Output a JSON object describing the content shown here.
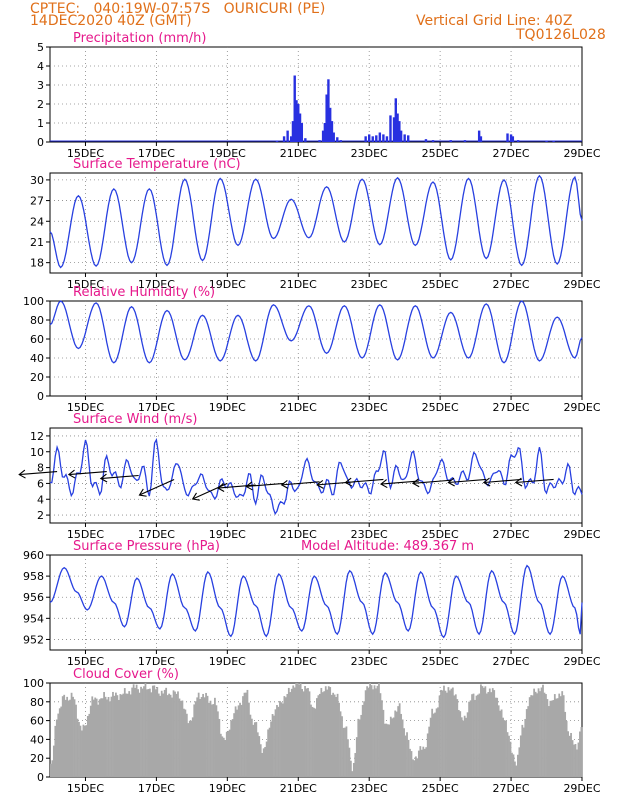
{
  "header": {
    "line1_left": "CPTEC:   040:19W-07:57S   OURICURI (PE)",
    "line2_left": "14DEC2020 40Z (GMT)",
    "line1_right": "Vertical Grid Line: 40Z",
    "line2_right": "TQ0126L028",
    "model_altitude": "Model Altitude: 489.367 m"
  },
  "colors": {
    "header_text": "#e0701a",
    "panel_title": "#e6198c",
    "line": "#2840e0",
    "bar": "#2830e0",
    "cloud": "#a8a8a8",
    "wind_arrow": "#000000",
    "grid": "#888888"
  },
  "x_axis": {
    "tick_labels": [
      "15DEC",
      "17DEC",
      "19DEC",
      "21DEC",
      "23DEC",
      "25DEC",
      "27DEC",
      "29DEC"
    ]
  },
  "chart_data": [
    {
      "type": "bar",
      "title": "Precipitation (mm/h)",
      "ylim": [
        0,
        5
      ],
      "y_ticks": [
        "0",
        "1",
        "2",
        "3",
        "4",
        "5"
      ],
      "x_range_days": [
        14,
        29
      ],
      "points": [
        [
          20.4,
          0.05
        ],
        [
          20.6,
          0.3
        ],
        [
          20.7,
          0.6
        ],
        [
          20.8,
          0.3
        ],
        [
          20.85,
          1.1
        ],
        [
          20.9,
          3.5
        ],
        [
          20.95,
          2.2
        ],
        [
          21.0,
          2.0
        ],
        [
          21.05,
          1.5
        ],
        [
          21.1,
          1.0
        ],
        [
          21.2,
          0.2
        ],
        [
          21.6,
          0.1
        ],
        [
          21.7,
          0.6
        ],
        [
          21.75,
          1.0
        ],
        [
          21.8,
          2.5
        ],
        [
          21.85,
          3.3
        ],
        [
          21.9,
          1.8
        ],
        [
          21.95,
          1.1
        ],
        [
          22.0,
          0.5
        ],
        [
          22.1,
          0.25
        ],
        [
          22.2,
          0.1
        ],
        [
          22.9,
          0.3
        ],
        [
          23.0,
          0.4
        ],
        [
          23.1,
          0.3
        ],
        [
          23.2,
          0.35
        ],
        [
          23.3,
          0.5
        ],
        [
          23.4,
          0.4
        ],
        [
          23.5,
          0.3
        ],
        [
          23.6,
          1.4
        ],
        [
          23.7,
          1.3
        ],
        [
          23.75,
          2.3
        ],
        [
          23.8,
          1.5
        ],
        [
          23.85,
          1.1
        ],
        [
          23.9,
          0.6
        ],
        [
          24.0,
          0.4
        ],
        [
          24.1,
          0.35
        ],
        [
          24.6,
          0.15
        ],
        [
          24.8,
          0.1
        ],
        [
          25.3,
          0.1
        ],
        [
          25.7,
          0.1
        ],
        [
          26.1,
          0.6
        ],
        [
          26.15,
          0.3
        ],
        [
          26.9,
          0.45
        ],
        [
          27.0,
          0.4
        ],
        [
          27.05,
          0.3
        ],
        [
          27.2,
          0.1
        ],
        [
          28.0,
          0.05
        ],
        [
          28.2,
          0.05
        ]
      ]
    },
    {
      "type": "line",
      "title": "Surface Temperature (nC)",
      "ylim": [
        16.5,
        31
      ],
      "y_ticks": [
        "18",
        "21",
        "24",
        "27",
        "30"
      ],
      "x_range_days": [
        14,
        29
      ],
      "minima": [
        [
          14.3,
          17.3
        ],
        [
          15.3,
          17.5
        ],
        [
          16.3,
          18.0
        ],
        [
          17.3,
          17.6
        ],
        [
          18.3,
          18.3
        ],
        [
          19.3,
          20.5
        ],
        [
          20.3,
          21.5
        ],
        [
          21.3,
          21.6
        ],
        [
          22.3,
          21.0
        ],
        [
          23.3,
          20.6
        ],
        [
          24.3,
          20.5
        ],
        [
          25.3,
          18.4
        ],
        [
          26.3,
          18.6
        ],
        [
          27.3,
          17.6
        ],
        [
          28.3,
          17.8
        ]
      ],
      "maxima": [
        [
          14.8,
          27.7
        ],
        [
          15.8,
          28.7
        ],
        [
          16.8,
          28.7
        ],
        [
          17.8,
          30.1
        ],
        [
          18.8,
          30.2
        ],
        [
          19.8,
          30.1
        ],
        [
          20.8,
          27.2
        ],
        [
          21.8,
          29.0
        ],
        [
          22.8,
          30.1
        ],
        [
          23.8,
          30.3
        ],
        [
          24.8,
          29.7
        ],
        [
          25.8,
          30.2
        ],
        [
          26.8,
          30.0
        ],
        [
          27.8,
          30.6
        ],
        [
          28.8,
          30.4
        ]
      ]
    },
    {
      "type": "line",
      "title": "Relative Humidity (%)",
      "ylim": [
        0,
        100
      ],
      "y_ticks": [
        "0",
        "20",
        "40",
        "60",
        "80",
        "100"
      ],
      "x_range_days": [
        14,
        29
      ],
      "minima": [
        [
          14.8,
          50
        ],
        [
          15.8,
          35
        ],
        [
          16.8,
          35
        ],
        [
          17.8,
          38
        ],
        [
          18.8,
          37
        ],
        [
          19.8,
          37
        ],
        [
          20.8,
          58
        ],
        [
          21.8,
          45
        ],
        [
          22.8,
          40
        ],
        [
          23.8,
          38
        ],
        [
          24.8,
          40
        ],
        [
          25.8,
          40
        ],
        [
          26.8,
          35
        ],
        [
          27.8,
          37
        ],
        [
          28.8,
          40
        ]
      ],
      "maxima": [
        [
          14.3,
          100
        ],
        [
          15.3,
          98
        ],
        [
          16.3,
          94
        ],
        [
          17.3,
          90
        ],
        [
          18.3,
          85
        ],
        [
          19.3,
          85
        ],
        [
          20.3,
          96
        ],
        [
          21.3,
          95
        ],
        [
          22.3,
          95
        ],
        [
          23.3,
          96
        ],
        [
          24.3,
          95
        ],
        [
          25.3,
          88
        ],
        [
          26.3,
          97
        ],
        [
          27.3,
          100
        ],
        [
          28.3,
          83
        ]
      ]
    },
    {
      "type": "line",
      "title": "Surface Wind (m/s)",
      "ylim": [
        1,
        13
      ],
      "y_ticks": [
        "2",
        "4",
        "6",
        "8",
        "10",
        "12"
      ],
      "x_range_days": [
        14,
        29
      ],
      "series_knots": [
        [
          14.0,
          6
        ],
        [
          14.2,
          10
        ],
        [
          14.4,
          7
        ],
        [
          14.6,
          5
        ],
        [
          14.8,
          7
        ],
        [
          15.0,
          11
        ],
        [
          15.2,
          6
        ],
        [
          15.4,
          5
        ],
        [
          15.6,
          9
        ],
        [
          15.8,
          7
        ],
        [
          16.0,
          6
        ],
        [
          16.2,
          9
        ],
        [
          16.4,
          6
        ],
        [
          16.6,
          8
        ],
        [
          16.8,
          5
        ],
        [
          17.0,
          11.5
        ],
        [
          17.2,
          5
        ],
        [
          17.4,
          6
        ],
        [
          17.6,
          9
        ],
        [
          17.8,
          5
        ],
        [
          18.0,
          5
        ],
        [
          18.2,
          7
        ],
        [
          18.4,
          6
        ],
        [
          18.6,
          4
        ],
        [
          18.8,
          6
        ],
        [
          19.0,
          6
        ],
        [
          19.2,
          5
        ],
        [
          19.4,
          4
        ],
        [
          19.6,
          7
        ],
        [
          19.8,
          4
        ],
        [
          20.0,
          7
        ],
        [
          20.2,
          4
        ],
        [
          20.4,
          2.5
        ],
        [
          20.6,
          4
        ],
        [
          20.8,
          6
        ],
        [
          21.0,
          5
        ],
        [
          21.2,
          9
        ],
        [
          21.4,
          7
        ],
        [
          21.6,
          5
        ],
        [
          21.8,
          6
        ],
        [
          22.0,
          5
        ],
        [
          22.2,
          9
        ],
        [
          22.4,
          6
        ],
        [
          22.6,
          6
        ],
        [
          22.8,
          6
        ],
        [
          23.0,
          5
        ],
        [
          23.2,
          7
        ],
        [
          23.4,
          10
        ],
        [
          23.6,
          6
        ],
        [
          23.8,
          8
        ],
        [
          24.0,
          6
        ],
        [
          24.2,
          10
        ],
        [
          24.4,
          7
        ],
        [
          24.6,
          5
        ],
        [
          24.8,
          6
        ],
        [
          25.0,
          9
        ],
        [
          25.2,
          7
        ],
        [
          25.4,
          6
        ],
        [
          25.6,
          7
        ],
        [
          25.8,
          7
        ],
        [
          26.0,
          10
        ],
        [
          26.2,
          7
        ],
        [
          26.4,
          6
        ],
        [
          26.6,
          8
        ],
        [
          26.8,
          6
        ],
        [
          27.0,
          9
        ],
        [
          27.2,
          10.5
        ],
        [
          27.4,
          6
        ],
        [
          27.6,
          6
        ],
        [
          27.8,
          10
        ],
        [
          28.0,
          5
        ],
        [
          28.2,
          6
        ],
        [
          28.4,
          6
        ],
        [
          28.6,
          8
        ],
        [
          28.8,
          5
        ],
        [
          29.0,
          5
        ]
      ],
      "wind_arrows": [
        [
          14.2,
          7.5,
          "W"
        ],
        [
          15.6,
          7.5,
          "W"
        ],
        [
          16.5,
          7,
          "W"
        ],
        [
          17.5,
          6.5,
          "SW"
        ],
        [
          19.0,
          6,
          "SW"
        ],
        [
          19.8,
          5.8,
          "W"
        ],
        [
          20.6,
          6,
          "W"
        ],
        [
          21.6,
          6.2,
          "W"
        ],
        [
          22.6,
          6.2,
          "W"
        ],
        [
          23.4,
          6.5,
          "W"
        ],
        [
          24.4,
          6.3,
          "W"
        ],
        [
          25.3,
          6.4,
          "W"
        ],
        [
          26.3,
          6.5,
          "W"
        ],
        [
          27.3,
          6.5,
          "W"
        ],
        [
          28.2,
          6.5,
          "W"
        ]
      ]
    },
    {
      "type": "line",
      "title": "Surface Pressure (hPa)",
      "ylim": [
        951,
        960
      ],
      "y_ticks": [
        "952",
        "954",
        "956",
        "958",
        "960"
      ],
      "x_range_days": [
        14,
        29
      ],
      "series_knots": [
        [
          14.0,
          955.5
        ],
        [
          14.4,
          958.8
        ],
        [
          14.75,
          956.5
        ],
        [
          15.05,
          954.8
        ],
        [
          15.45,
          958.0
        ],
        [
          15.8,
          955.5
        ],
        [
          16.1,
          953.2
        ],
        [
          16.45,
          957.8
        ],
        [
          16.8,
          955.0
        ],
        [
          17.1,
          953.0
        ],
        [
          17.45,
          958.2
        ],
        [
          17.8,
          955.0
        ],
        [
          18.1,
          952.8
        ],
        [
          18.45,
          958.4
        ],
        [
          18.8,
          955.0
        ],
        [
          19.1,
          952.3
        ],
        [
          19.45,
          958.0
        ],
        [
          19.8,
          955.2
        ],
        [
          20.1,
          952.3
        ],
        [
          20.45,
          958.2
        ],
        [
          20.8,
          955.0
        ],
        [
          21.1,
          952.8
        ],
        [
          21.45,
          958.0
        ],
        [
          21.8,
          955.2
        ],
        [
          22.1,
          952.5
        ],
        [
          22.45,
          958.5
        ],
        [
          22.8,
          955.5
        ],
        [
          23.1,
          952.5
        ],
        [
          23.45,
          958.3
        ],
        [
          23.8,
          955.5
        ],
        [
          24.1,
          952.8
        ],
        [
          24.45,
          958.4
        ],
        [
          24.8,
          955.0
        ],
        [
          25.1,
          952.2
        ],
        [
          25.45,
          958.0
        ],
        [
          25.8,
          955.5
        ],
        [
          26.1,
          952.5
        ],
        [
          26.45,
          958.5
        ],
        [
          26.8,
          955.5
        ],
        [
          27.1,
          952.5
        ],
        [
          27.45,
          959.0
        ],
        [
          27.8,
          955.5
        ],
        [
          28.1,
          952.5
        ],
        [
          28.45,
          958.0
        ],
        [
          28.8,
          955.0
        ],
        [
          28.95,
          952.5
        ],
        [
          29.0,
          955.5
        ]
      ]
    },
    {
      "type": "bar",
      "title": "Cloud Cover (%)",
      "ylim": [
        0,
        100
      ],
      "y_ticks": [
        "0",
        "20",
        "40",
        "60",
        "80",
        "100"
      ],
      "x_range_days": [
        14,
        29
      ],
      "series_knots": [
        [
          14.0,
          10
        ],
        [
          14.2,
          70
        ],
        [
          14.4,
          85
        ],
        [
          14.6,
          85
        ],
        [
          14.9,
          50
        ],
        [
          15.2,
          82
        ],
        [
          15.6,
          85
        ],
        [
          16.0,
          88
        ],
        [
          16.4,
          95
        ],
        [
          16.8,
          95
        ],
        [
          17.2,
          90
        ],
        [
          17.6,
          88
        ],
        [
          17.9,
          60
        ],
        [
          18.2,
          88
        ],
        [
          18.6,
          80
        ],
        [
          18.9,
          40
        ],
        [
          19.2,
          70
        ],
        [
          19.5,
          90
        ],
        [
          19.7,
          60
        ],
        [
          20.0,
          30
        ],
        [
          20.3,
          70
        ],
        [
          20.6,
          85
        ],
        [
          20.9,
          100
        ],
        [
          21.2,
          95
        ],
        [
          21.4,
          75
        ],
        [
          21.7,
          95
        ],
        [
          22.0,
          90
        ],
        [
          22.3,
          55
        ],
        [
          22.5,
          10
        ],
        [
          22.7,
          60
        ],
        [
          22.9,
          95
        ],
        [
          23.2,
          98
        ],
        [
          23.5,
          55
        ],
        [
          23.8,
          75
        ],
        [
          24.0,
          50
        ],
        [
          24.2,
          20
        ],
        [
          24.5,
          30
        ],
        [
          24.8,
          70
        ],
        [
          25.1,
          95
        ],
        [
          25.4,
          90
        ],
        [
          25.6,
          60
        ],
        [
          25.9,
          85
        ],
        [
          26.2,
          95
        ],
        [
          26.5,
          90
        ],
        [
          26.8,
          60
        ],
        [
          27.1,
          15
        ],
        [
          27.3,
          50
        ],
        [
          27.5,
          85
        ],
        [
          27.8,
          95
        ],
        [
          28.1,
          80
        ],
        [
          28.4,
          90
        ],
        [
          28.6,
          50
        ],
        [
          28.8,
          30
        ],
        [
          29.0,
          60
        ]
      ]
    }
  ]
}
